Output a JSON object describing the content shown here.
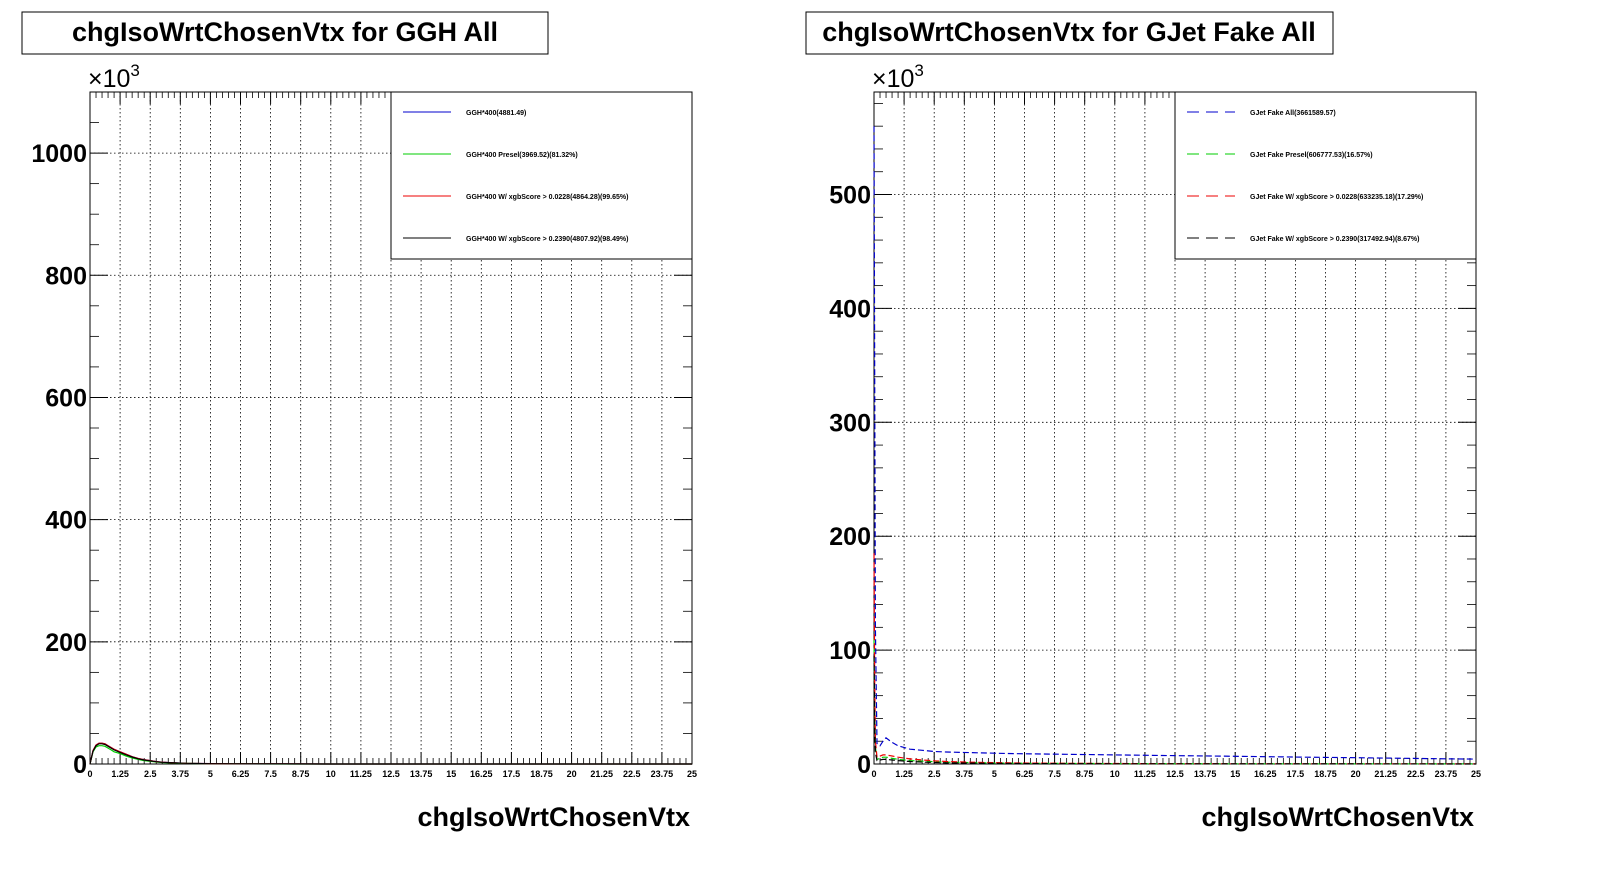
{
  "chart_data": [
    {
      "type": "line",
      "title": "chgIsoWrtChosenVtx for GGH All",
      "xlabel": "chgIsoWrtChosenVtx",
      "ylabel": "",
      "y_exponent_label": "×10",
      "y_exponent_power": "3",
      "xlim": [
        0,
        25
      ],
      "ylim": [
        0,
        1100
      ],
      "y_unit_scale": 1000,
      "x_major_ticks": [
        0,
        1.25,
        2.5,
        3.75,
        5,
        6.25,
        7.5,
        8.75,
        10,
        11.25,
        12.5,
        13.75,
        15,
        16.25,
        17.5,
        18.75,
        20,
        21.25,
        22.5,
        23.75,
        25
      ],
      "x_tick_labels": [
        "0",
        "1.25",
        "2.5",
        "3.75",
        "5",
        "6.25",
        "7.5",
        "8.75",
        "10",
        "11.25",
        "12.5",
        "13.75",
        "15",
        "16.25",
        "17.5",
        "18.75",
        "20",
        "21.25",
        "22.5",
        "23.75",
        "25"
      ],
      "y_major_ticks": [
        0,
        200,
        400,
        600,
        800,
        1000
      ],
      "y_tick_labels": [
        "0",
        "200",
        "400",
        "600",
        "800",
        "1000"
      ],
      "y_minor_step": 50,
      "grid": true,
      "legend_position": "top-right",
      "series": [
        {
          "name": "GGH*400(4881.49)",
          "color": "#0000cc",
          "dashed": false,
          "x": [
            0,
            0.125,
            0.25,
            0.375,
            0.5,
            0.625,
            0.75,
            0.875,
            1,
            1.25,
            1.5,
            1.75,
            2,
            2.25,
            2.5,
            2.75,
            3,
            3.5,
            4,
            5,
            6,
            8,
            10,
            12.5,
            15,
            17.5,
            20,
            22.5,
            25
          ],
          "y": [
            0,
            22,
            31,
            34,
            34,
            33,
            30,
            27,
            24,
            20,
            16,
            12,
            9,
            7,
            5.5,
            4,
            3,
            2,
            1.2,
            0.6,
            0.3,
            0.1,
            0.05,
            0.02,
            0.01,
            0,
            0,
            0,
            0
          ]
        },
        {
          "name": "GGH*400 Presel(3969.52)(81.32%)",
          "color": "#00cc00",
          "dashed": false,
          "x": [
            0,
            0.125,
            0.25,
            0.375,
            0.5,
            0.625,
            0.75,
            0.875,
            1,
            1.25,
            1.5,
            1.75,
            2,
            2.25,
            2.5,
            2.75,
            3,
            3.5,
            4,
            5,
            6,
            8,
            10,
            12.5,
            15,
            17.5,
            20,
            22.5,
            25
          ],
          "y": [
            0,
            20,
            28,
            30,
            30,
            29,
            26,
            23,
            20,
            17,
            13,
            10,
            7.5,
            5.5,
            4.5,
            3.3,
            2.5,
            1.6,
            1,
            0.5,
            0.25,
            0.08,
            0.04,
            0.02,
            0.01,
            0,
            0,
            0,
            0
          ]
        },
        {
          "name": "GGH*400 W/ xgbScore > 0.0228(4864.28)(99.65%)",
          "color": "#ee0000",
          "dashed": false,
          "x": [
            0,
            0.125,
            0.25,
            0.375,
            0.5,
            0.625,
            0.75,
            0.875,
            1,
            1.25,
            1.5,
            1.75,
            2,
            2.25,
            2.5,
            2.75,
            3,
            3.5,
            4,
            5,
            6,
            8,
            10,
            12.5,
            15,
            17.5,
            20,
            22.5,
            25
          ],
          "y": [
            0,
            22,
            31,
            34,
            34,
            33,
            30,
            27,
            24,
            20,
            16,
            12,
            9,
            7,
            5.5,
            4,
            3,
            2,
            1.2,
            0.6,
            0.3,
            0.1,
            0.05,
            0.02,
            0.01,
            0,
            0,
            0,
            0
          ]
        },
        {
          "name": "GGH*400 W/ xgbScore > 0.2390(4807.92)(98.49%)",
          "color": "#000000",
          "dashed": false,
          "x": [
            0,
            0.125,
            0.25,
            0.375,
            0.5,
            0.625,
            0.75,
            0.875,
            1,
            1.25,
            1.5,
            1.75,
            2,
            2.25,
            2.5,
            2.75,
            3,
            3.5,
            4,
            5,
            6,
            8,
            10,
            12.5,
            15,
            17.5,
            20,
            22.5,
            25
          ],
          "y": [
            0,
            21,
            30,
            33,
            33,
            32,
            29,
            26,
            23,
            19,
            15,
            11.5,
            8.5,
            6.5,
            5,
            3.8,
            2.8,
            1.9,
            1.1,
            0.55,
            0.28,
            0.09,
            0.05,
            0.02,
            0.01,
            0,
            0,
            0,
            0
          ]
        }
      ]
    },
    {
      "type": "line",
      "title": "chgIsoWrtChosenVtx for GJet Fake All",
      "xlabel": "chgIsoWrtChosenVtx",
      "ylabel": "",
      "y_exponent_label": "×10",
      "y_exponent_power": "3",
      "xlim": [
        0,
        25
      ],
      "ylim": [
        0,
        590
      ],
      "y_unit_scale": 1000,
      "x_major_ticks": [
        0,
        1.25,
        2.5,
        3.75,
        5,
        6.25,
        7.5,
        8.75,
        10,
        11.25,
        12.5,
        13.75,
        15,
        16.25,
        17.5,
        18.75,
        20,
        21.25,
        22.5,
        23.75,
        25
      ],
      "x_tick_labels": [
        "0",
        "1.25",
        "2.5",
        "3.75",
        "5",
        "6.25",
        "7.5",
        "8.75",
        "10",
        "11.25",
        "12.5",
        "13.75",
        "15",
        "16.25",
        "17.5",
        "18.75",
        "20",
        "21.25",
        "22.5",
        "23.75",
        "25"
      ],
      "y_major_ticks": [
        0,
        100,
        200,
        300,
        400,
        500
      ],
      "y_tick_labels": [
        "0",
        "100",
        "200",
        "300",
        "400",
        "500"
      ],
      "y_minor_step": 20,
      "grid": true,
      "legend_position": "top-right",
      "series": [
        {
          "name": "GJet Fake All(3661589.57)",
          "color": "#0000cc",
          "dashed": true,
          "x": [
            0,
            0.03,
            0.06,
            0.125,
            0.25,
            0.375,
            0.5,
            0.625,
            0.75,
            1,
            1.5,
            2,
            2.5,
            3,
            4,
            5,
            6,
            8,
            10,
            12,
            14,
            16,
            18,
            20,
            22,
            24,
            25
          ],
          "y": [
            560,
            340,
            120,
            18,
            16,
            20,
            23,
            21,
            19,
            16,
            13,
            12,
            11,
            10.5,
            10,
            9.5,
            9,
            8.5,
            8,
            7.5,
            7,
            6.5,
            6,
            5.5,
            5,
            4.5,
            4.3
          ]
        },
        {
          "name": "GJet Fake Presel(606777.53)(16.57%)",
          "color": "#00cc00",
          "dashed": true,
          "x": [
            0,
            0.03,
            0.06,
            0.125,
            0.25,
            0.375,
            0.5,
            0.75,
            1,
            1.5,
            2,
            2.5,
            3,
            4,
            5,
            6,
            8,
            10,
            12,
            15,
            20,
            25
          ],
          "y": [
            110,
            45,
            15,
            4,
            5,
            6,
            6,
            5,
            4,
            3,
            2.5,
            2,
            1.6,
            1.2,
            0.9,
            0.7,
            0.5,
            0.35,
            0.25,
            0.15,
            0.1,
            0.05
          ]
        },
        {
          "name": "GJet Fake W/ xgbScore > 0.0228(633235.18)(17.29%)",
          "color": "#ee0000",
          "dashed": true,
          "x": [
            0,
            0.03,
            0.06,
            0.125,
            0.25,
            0.375,
            0.5,
            0.75,
            1,
            1.5,
            2,
            2.5,
            3,
            4,
            5,
            6,
            8,
            10,
            12,
            15,
            20,
            25
          ],
          "y": [
            185,
            70,
            20,
            6,
            7,
            8,
            8,
            7,
            6,
            4.5,
            3.5,
            2.8,
            2.2,
            1.6,
            1.2,
            0.9,
            0.6,
            0.4,
            0.3,
            0.2,
            0.1,
            0.05
          ]
        },
        {
          "name": "GJet Fake W/ xgbScore > 0.2390(317492.94)(8.67%)",
          "color": "#000000",
          "dashed": true,
          "x": [
            0,
            0.03,
            0.06,
            0.125,
            0.25,
            0.375,
            0.5,
            0.75,
            1,
            1.5,
            2,
            2.5,
            3,
            4,
            5,
            6,
            8,
            10,
            12,
            15,
            20,
            25
          ],
          "y": [
            95,
            35,
            10,
            3,
            3.5,
            4,
            4,
            3.5,
            3,
            2.2,
            1.7,
            1.3,
            1,
            0.8,
            0.6,
            0.45,
            0.3,
            0.2,
            0.15,
            0.1,
            0.05,
            0.02
          ]
        }
      ]
    }
  ]
}
